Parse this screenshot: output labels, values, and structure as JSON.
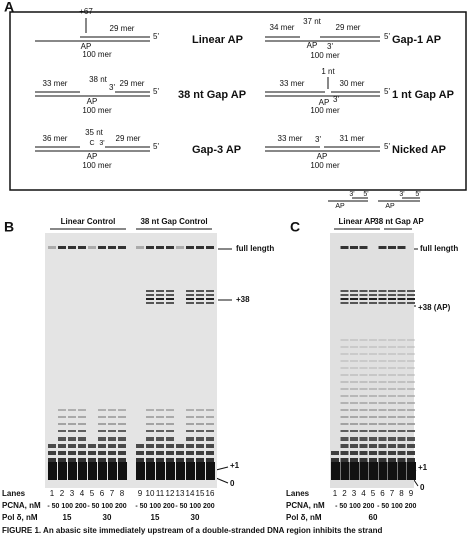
{
  "panel_a": {
    "label": "A",
    "diagrams": [
      [
        "+67",
        "29 mer",
        "5'",
        "AP",
        "100 mer",
        "Linear AP"
      ],
      [
        "34 mer",
        "37 nt",
        "29 mer",
        "3'",
        "AP",
        "5'",
        "100 mer",
        "Gap-1 AP"
      ],
      [
        "33 mer",
        "38 nt",
        "3'",
        "29 mer",
        "5'",
        "AP",
        "100 mer",
        "38 nt Gap AP"
      ],
      [
        "1 nt",
        "33 mer",
        "30 mer",
        "3'",
        "5'",
        "AP",
        "100 mer",
        "1 nt Gap AP"
      ],
      [
        "36 mer",
        "35 nt",
        "C",
        "29 mer",
        "5'",
        "3'",
        "AP",
        "100 mer",
        "Gap-3 AP"
      ],
      [
        "33 mer",
        "3'",
        "31 mer",
        "5'",
        "AP",
        "100 mer",
        "Nicked AP"
      ]
    ],
    "key": [
      "AP",
      "3'",
      "5'",
      "AP",
      "3'",
      "5'"
    ]
  },
  "panel_b": {
    "label": "B",
    "groups": [
      "Linear Control",
      "38 nt Gap Control"
    ],
    "markers": [
      "full length",
      "+38",
      "+1",
      "0"
    ],
    "rows": [
      "Lanes",
      "PCNA, nM",
      "Pol δ, nM"
    ],
    "lanes": [
      "1",
      "2",
      "3",
      "4",
      "5",
      "6",
      "7",
      "8",
      "9",
      "10",
      "11",
      "12",
      "13",
      "14",
      "15",
      "16"
    ],
    "pcna": [
      "- 50 100 200",
      "- 50 100 200",
      "- 50 100 200",
      "- 50 100 200"
    ],
    "pol": [
      "15",
      "30",
      "15",
      "30"
    ]
  },
  "panel_c": {
    "label": "C",
    "groups": [
      "Linear AP",
      "38 nt Gap AP"
    ],
    "markers": [
      "full length",
      "+38 (AP)",
      "+1",
      "0"
    ],
    "rows": [
      "Lanes",
      "PCNA, nM",
      "Pol δ, nM"
    ],
    "lanes": [
      "1",
      "2",
      "3",
      "4",
      "5",
      "6",
      "7",
      "8",
      "9"
    ],
    "pcna": [
      "- 50 100 200",
      "- 50 100 200"
    ],
    "pol": [
      "60"
    ]
  },
  "caption": "FIGURE 1. An abasic site immediately upstream of a double-stranded DNA region inhibits the strand"
}
